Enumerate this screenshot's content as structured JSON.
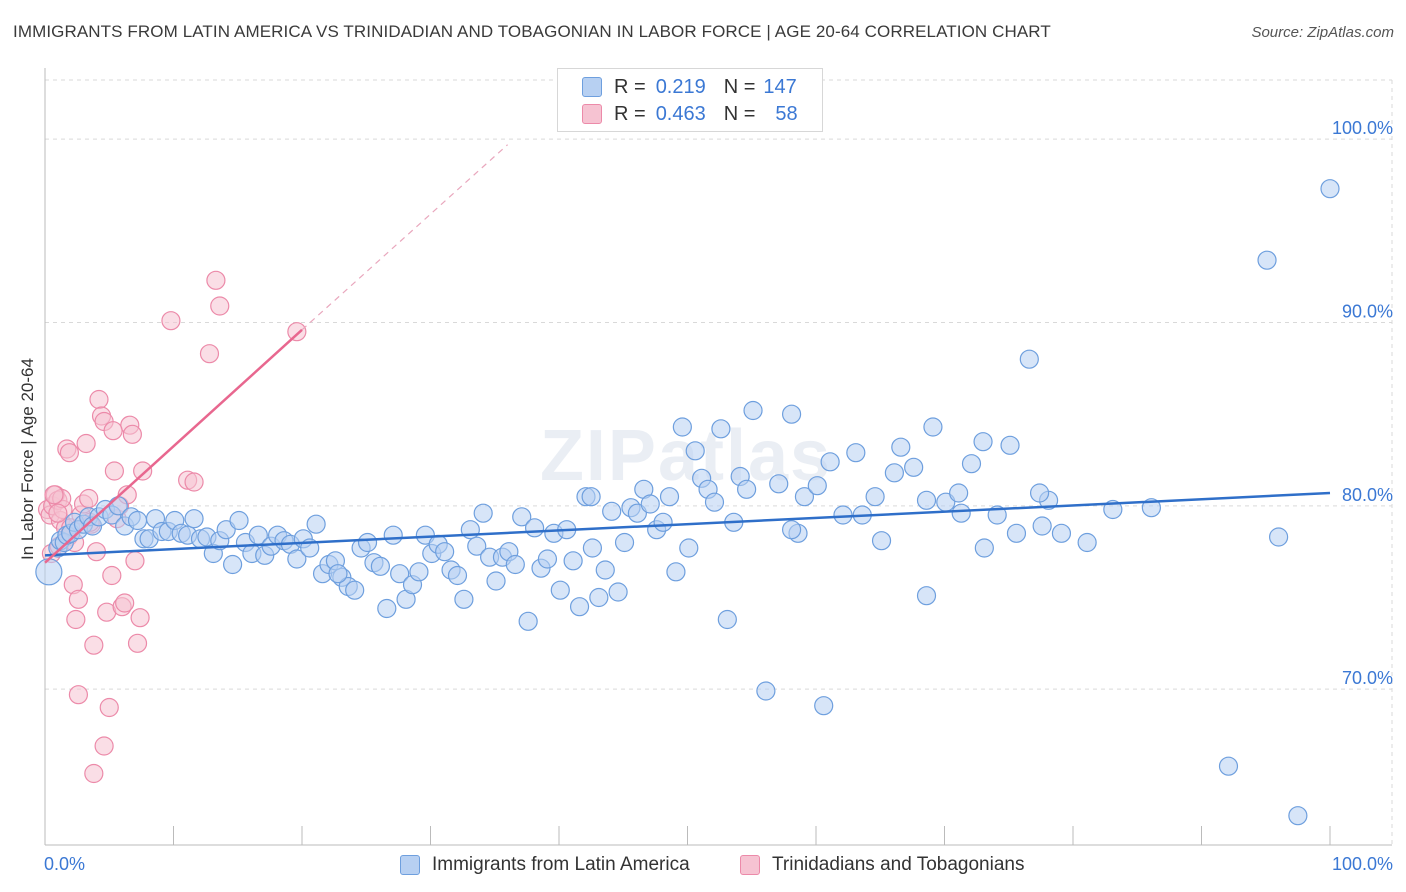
{
  "title": "IMMIGRANTS FROM LATIN AMERICA VS TRINIDADIAN AND TOBAGONIAN IN LABOR FORCE | AGE 20-64 CORRELATION CHART",
  "source": "Source: ZipAtlas.com",
  "watermark": "ZIPatlas",
  "legend": {
    "rows": [
      {
        "r_label": "R =",
        "r_value": "0.219",
        "n_label": "N =",
        "n_value": "147"
      },
      {
        "r_label": "R =",
        "r_value": "0.463",
        "n_label": "N =",
        "n_value": "58"
      }
    ]
  },
  "colors": {
    "blue_fill": "#b7d0f2",
    "blue_stroke": "#6e9fde",
    "blue_line": "#2f6fc9",
    "pink_fill": "#f6c3d2",
    "pink_stroke": "#ec8aa9",
    "pink_line": "#e8678f",
    "axis_label": "#3b78d4",
    "grid": "#d9d9d9"
  },
  "chart_data": {
    "type": "scatter",
    "xlabel": "",
    "ylabel": "In Labor Force | Age 20-64",
    "xlim": [
      0,
      100
    ],
    "ylim": [
      61.5,
      103.5
    ],
    "x_tick_labels": [
      "0.0%",
      "100.0%"
    ],
    "y_ticks": [
      70,
      80,
      90,
      100
    ],
    "y_tick_labels": [
      "70.0%",
      "80.0%",
      "90.0%",
      "100.0%"
    ],
    "grid": true,
    "legend_position": "top-center",
    "series": [
      {
        "name": "Immigrants from Latin America",
        "color": "#b7d0f2",
        "trend": {
          "x0": 0,
          "y0": 77.3,
          "x1": 100,
          "y1": 80.7
        },
        "points": [
          [
            0.3,
            76.4
          ],
          [
            1.0,
            77.7
          ],
          [
            1.2,
            78.1
          ],
          [
            1.5,
            78.0
          ],
          [
            1.7,
            78.4
          ],
          [
            2.0,
            78.5
          ],
          [
            2.3,
            79.1
          ],
          [
            2.6,
            78.7
          ],
          [
            3.0,
            79.0
          ],
          [
            3.4,
            79.4
          ],
          [
            3.7,
            78.9
          ],
          [
            4.2,
            79.4
          ],
          [
            4.7,
            79.8
          ],
          [
            5.2,
            79.5
          ],
          [
            5.7,
            80.0
          ],
          [
            6.2,
            78.9
          ],
          [
            6.7,
            79.4
          ],
          [
            7.2,
            79.2
          ],
          [
            7.7,
            78.2
          ],
          [
            8.1,
            78.2
          ],
          [
            8.6,
            79.3
          ],
          [
            9.1,
            78.6
          ],
          [
            9.6,
            78.6
          ],
          [
            10.1,
            79.2
          ],
          [
            10.6,
            78.5
          ],
          [
            11.1,
            78.4
          ],
          [
            11.6,
            79.3
          ],
          [
            12.1,
            78.2
          ],
          [
            12.6,
            78.3
          ],
          [
            13.1,
            77.4
          ],
          [
            13.6,
            78.1
          ],
          [
            14.1,
            78.7
          ],
          [
            14.6,
            76.8
          ],
          [
            15.1,
            79.2
          ],
          [
            15.6,
            78.0
          ],
          [
            16.1,
            77.4
          ],
          [
            16.6,
            78.4
          ],
          [
            17.1,
            77.3
          ],
          [
            17.6,
            77.8
          ],
          [
            18.1,
            78.4
          ],
          [
            18.6,
            78.1
          ],
          [
            19.1,
            77.9
          ],
          [
            19.6,
            77.1
          ],
          [
            20.1,
            78.2
          ],
          [
            20.6,
            77.7
          ],
          [
            21.1,
            79.0
          ],
          [
            21.6,
            76.3
          ],
          [
            22.1,
            76.8
          ],
          [
            22.6,
            77.0
          ],
          [
            23.1,
            76.1
          ],
          [
            23.6,
            75.6
          ],
          [
            24.1,
            75.4
          ],
          [
            24.6,
            77.7
          ],
          [
            25.1,
            78.0
          ],
          [
            25.6,
            76.9
          ],
          [
            26.1,
            76.7
          ],
          [
            26.6,
            74.4
          ],
          [
            27.1,
            78.4
          ],
          [
            27.6,
            76.3
          ],
          [
            28.1,
            74.9
          ],
          [
            28.6,
            75.7
          ],
          [
            29.1,
            76.4
          ],
          [
            29.6,
            78.4
          ],
          [
            30.1,
            77.4
          ],
          [
            30.6,
            77.9
          ],
          [
            31.1,
            77.5
          ],
          [
            31.6,
            76.5
          ],
          [
            32.1,
            76.2
          ],
          [
            32.6,
            74.9
          ],
          [
            33.1,
            78.7
          ],
          [
            33.6,
            77.8
          ],
          [
            34.1,
            79.6
          ],
          [
            34.6,
            77.2
          ],
          [
            35.1,
            75.9
          ],
          [
            35.6,
            77.2
          ],
          [
            36.1,
            77.5
          ],
          [
            36.6,
            76.8
          ],
          [
            37.1,
            79.4
          ],
          [
            37.6,
            73.7
          ],
          [
            38.1,
            78.8
          ],
          [
            38.6,
            76.6
          ],
          [
            39.1,
            77.1
          ],
          [
            39.6,
            78.5
          ],
          [
            40.1,
            75.4
          ],
          [
            40.6,
            78.7
          ],
          [
            41.1,
            77.0
          ],
          [
            41.6,
            74.5
          ],
          [
            42.1,
            80.5
          ],
          [
            42.6,
            77.7
          ],
          [
            43.1,
            75.0
          ],
          [
            43.6,
            76.5
          ],
          [
            44.1,
            79.7
          ],
          [
            44.6,
            75.3
          ],
          [
            45.1,
            78.0
          ],
          [
            45.6,
            79.9
          ],
          [
            46.1,
            79.6
          ],
          [
            46.6,
            80.9
          ],
          [
            47.1,
            80.1
          ],
          [
            47.6,
            78.7
          ],
          [
            48.1,
            79.1
          ],
          [
            48.6,
            80.5
          ],
          [
            49.1,
            76.4
          ],
          [
            49.6,
            84.3
          ],
          [
            50.1,
            77.7
          ],
          [
            50.6,
            83.0
          ],
          [
            51.1,
            81.5
          ],
          [
            51.6,
            80.9
          ],
          [
            52.1,
            80.2
          ],
          [
            52.6,
            84.2
          ],
          [
            53.1,
            73.8
          ],
          [
            53.6,
            79.1
          ],
          [
            54.1,
            81.6
          ],
          [
            54.6,
            80.9
          ],
          [
            55.1,
            85.2
          ],
          [
            56.1,
            69.9
          ],
          [
            57.1,
            81.2
          ],
          [
            58.1,
            85.0
          ],
          [
            58.6,
            78.5
          ],
          [
            59.1,
            80.5
          ],
          [
            60.6,
            69.1
          ],
          [
            60.1,
            81.1
          ],
          [
            61.1,
            82.4
          ],
          [
            62.1,
            79.5
          ],
          [
            63.1,
            82.9
          ],
          [
            63.6,
            79.5
          ],
          [
            65.1,
            78.1
          ],
          [
            66.1,
            81.8
          ],
          [
            66.6,
            83.2
          ],
          [
            67.6,
            82.1
          ],
          [
            68.6,
            75.1
          ],
          [
            69.1,
            84.3
          ],
          [
            70.1,
            80.2
          ],
          [
            71.1,
            80.7
          ],
          [
            72.1,
            82.3
          ],
          [
            73.1,
            77.7
          ],
          [
            74.1,
            79.5
          ],
          [
            75.1,
            83.3
          ],
          [
            75.6,
            78.5
          ],
          [
            76.6,
            88.0
          ],
          [
            77.6,
            78.9
          ],
          [
            78.1,
            80.3
          ],
          [
            79.1,
            78.5
          ],
          [
            81.1,
            78.0
          ],
          [
            83.1,
            79.8
          ],
          [
            86.1,
            79.9
          ],
          [
            95.1,
            93.4
          ],
          [
            97.5,
            63.1
          ],
          [
            96.0,
            78.3
          ],
          [
            100.0,
            97.3
          ],
          [
            92.1,
            65.8
          ],
          [
            42.5,
            80.5
          ],
          [
            22.8,
            76.3
          ],
          [
            58.1,
            78.7
          ],
          [
            64.6,
            80.5
          ],
          [
            68.6,
            80.3
          ],
          [
            71.3,
            79.6
          ],
          [
            77.4,
            80.7
          ],
          [
            73.0,
            83.5
          ]
        ]
      },
      {
        "name": "Trinidadians and Tobagonians",
        "color": "#f6c3d2",
        "trend": {
          "x0": 0,
          "y0": 76.9,
          "x1": 20,
          "y1": 89.6
        },
        "trend_dashed": {
          "x0": 20,
          "y0": 89.6,
          "x1": 36,
          "y1": 99.7
        },
        "points": [
          [
            0.2,
            79.8
          ],
          [
            0.4,
            79.5
          ],
          [
            0.6,
            80.0
          ],
          [
            0.8,
            80.6
          ],
          [
            1.0,
            80.3
          ],
          [
            1.2,
            79.2
          ],
          [
            1.4,
            79.8
          ],
          [
            1.6,
            78.8
          ],
          [
            1.8,
            78.3
          ],
          [
            2.0,
            78.8
          ],
          [
            0.5,
            77.4
          ],
          [
            1.1,
            77.8
          ],
          [
            1.3,
            80.4
          ],
          [
            1.7,
            83.1
          ],
          [
            1.9,
            82.9
          ],
          [
            2.2,
            75.7
          ],
          [
            2.4,
            73.8
          ],
          [
            2.6,
            74.9
          ],
          [
            2.8,
            79.5
          ],
          [
            3.0,
            80.1
          ],
          [
            3.2,
            83.4
          ],
          [
            3.4,
            80.4
          ],
          [
            3.6,
            79.0
          ],
          [
            3.8,
            72.4
          ],
          [
            4.0,
            77.5
          ],
          [
            4.2,
            85.8
          ],
          [
            4.4,
            84.9
          ],
          [
            4.6,
            84.6
          ],
          [
            4.8,
            74.2
          ],
          [
            5.0,
            69.0
          ],
          [
            5.2,
            76.2
          ],
          [
            5.4,
            81.9
          ],
          [
            5.6,
            79.3
          ],
          [
            5.8,
            80.0
          ],
          [
            6.0,
            74.5
          ],
          [
            6.2,
            74.7
          ],
          [
            6.4,
            80.6
          ],
          [
            6.6,
            84.4
          ],
          [
            6.8,
            83.9
          ],
          [
            7.0,
            77.0
          ],
          [
            7.2,
            72.5
          ],
          [
            7.4,
            73.9
          ],
          [
            7.6,
            81.9
          ],
          [
            2.6,
            69.7
          ],
          [
            3.8,
            65.4
          ],
          [
            4.6,
            66.9
          ],
          [
            9.8,
            90.1
          ],
          [
            11.1,
            81.4
          ],
          [
            11.6,
            81.3
          ],
          [
            12.8,
            88.3
          ],
          [
            13.3,
            92.3
          ],
          [
            13.6,
            90.9
          ],
          [
            19.6,
            89.5
          ],
          [
            3.5,
            79.1
          ],
          [
            2.3,
            78.0
          ],
          [
            5.3,
            84.1
          ],
          [
            1.0,
            79.6
          ],
          [
            0.7,
            80.6
          ]
        ]
      }
    ]
  }
}
